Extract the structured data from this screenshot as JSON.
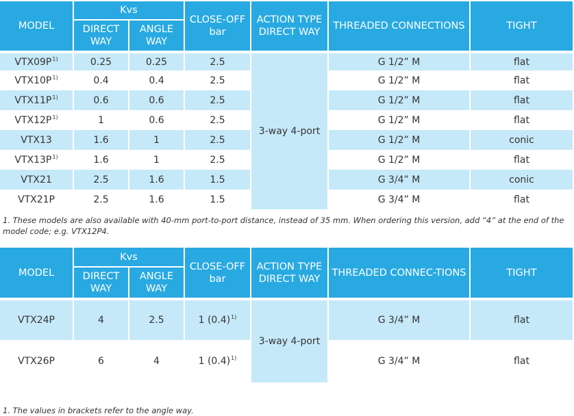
{
  "table1": {
    "headers": {
      "model": "MODEL",
      "kvs": "Kvs",
      "direct_way": "DIRECT WAY",
      "angle_way": "ANGLE WAY",
      "close_off": "CLOSE-OFF bar",
      "action_type": "ACTION TYPE DIRECT WAY",
      "threaded": "THREADED CONNECTIONS",
      "tight": "TIGHT"
    },
    "action_value": "3-way 4-port",
    "rows": [
      {
        "model": "VTX09P",
        "note": "1)",
        "direct": "0.25",
        "angle": "0.25",
        "close_off": "2.5",
        "threaded": "G 1/2” M",
        "tight": "flat"
      },
      {
        "model": "VTX10P",
        "note": "1)",
        "direct": "0.4",
        "angle": "0.4",
        "close_off": "2.5",
        "threaded": "G 1/2” M",
        "tight": "flat"
      },
      {
        "model": "VTX11P",
        "note": "1)",
        "direct": "0.6",
        "angle": "0.6",
        "close_off": "2.5",
        "threaded": "G 1/2” M",
        "tight": "flat"
      },
      {
        "model": "VTX12P",
        "note": "1)",
        "direct": "1",
        "angle": "0.6",
        "close_off": "2.5",
        "threaded": "G 1/2” M",
        "tight": "flat"
      },
      {
        "model": "VTX13",
        "note": "",
        "direct": "1.6",
        "angle": "1",
        "close_off": "2.5",
        "threaded": "G 1/2” M",
        "tight": "conic"
      },
      {
        "model": "VTX13P",
        "note": "1)",
        "direct": "1.6",
        "angle": "1",
        "close_off": "2.5",
        "threaded": "G 1/2” M",
        "tight": "flat"
      },
      {
        "model": "VTX21",
        "note": "",
        "direct": "2.5",
        "angle": "1.6",
        "close_off": "1.5",
        "threaded": "G 3/4” M",
        "tight": "conic"
      },
      {
        "model": "VTX21P",
        "note": "",
        "direct": "2.5",
        "angle": "1.6",
        "close_off": "1.5",
        "threaded": "G 3/4” M",
        "tight": "flat"
      }
    ],
    "footnote": "1.  These models are also available with 40-mm port-to-port distance, instead of 35 mm. When ordering this version, add “4” at the end of the model code; e.g. VTX12P4."
  },
  "table2": {
    "headers": {
      "model": "MODEL",
      "kvs": "Kvs",
      "direct_way": "DIRECT WAY",
      "angle_way": "ANGLE WAY",
      "close_off": "CLOSE-OFF bar",
      "action_type": "ACTION TYPE DIRECT WAY",
      "threaded": "THREADED CONNEC-TIONS",
      "tight": "TIGHT"
    },
    "action_value": "3-way 4-port",
    "rows": [
      {
        "model": "VTX24P",
        "direct": "4",
        "angle": "2.5",
        "close_off": "1 (0.4)",
        "note": "1)",
        "threaded": "G 3/4” M",
        "tight": "flat"
      },
      {
        "model": "VTX26P",
        "direct": "6",
        "angle": "4",
        "close_off": "1 (0.4)",
        "note": "1)",
        "threaded": "G 3/4” M",
        "tight": "flat"
      }
    ],
    "footnote": "1.  The values in brackets refer to the angle way."
  }
}
